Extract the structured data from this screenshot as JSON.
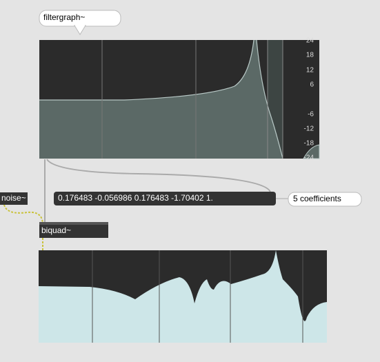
{
  "filtergraph": {
    "comment": "filtergraph~",
    "db_labels": [
      "24",
      "18",
      "12",
      "6",
      "-6",
      "-12",
      "-18",
      "-24"
    ]
  },
  "message": "0.176483 -0.056986 0.176483 -1.70402 1.",
  "coefficients_comment": "5 coefficients",
  "noise_object": "noise~",
  "biquad_object": "biquad~"
}
